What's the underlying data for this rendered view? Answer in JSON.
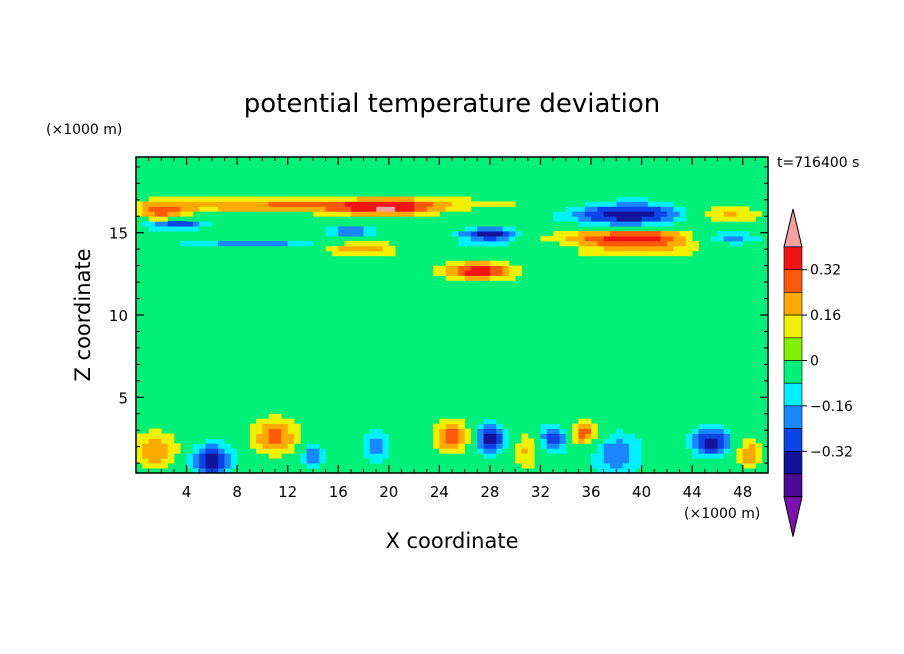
{
  "chart_data": {
    "type": "heatmap",
    "title": "potential temperature deviation",
    "time_label": "t=716400 s",
    "xlabel": "X coordinate",
    "ylabel": "Z coordinate",
    "x_unit": "(×1000 m)",
    "y_unit": "(×1000 m)",
    "xlim": [
      0,
      50
    ],
    "ylim": [
      0.4,
      19.6
    ],
    "x_ticks": [
      4,
      8,
      12,
      16,
      20,
      24,
      28,
      32,
      36,
      40,
      44,
      48
    ],
    "y_ticks": [
      5,
      10,
      15
    ],
    "colorbar": {
      "levels": [
        -0.48,
        -0.4,
        -0.32,
        -0.24,
        -0.16,
        -0.08,
        0,
        0.08,
        0.16,
        0.24,
        0.32,
        0.4
      ],
      "tick_labels": [
        {
          "value": 0.32,
          "label": "0.32"
        },
        {
          "value": 0.16,
          "label": "0.16"
        },
        {
          "value": 0,
          "label": "0"
        },
        {
          "value": -0.16,
          "label": "−0.16"
        },
        {
          "value": -0.32,
          "label": "−0.32"
        }
      ],
      "colors": [
        "#7b12b0",
        "#4a0a96",
        "#12129a",
        "#0a44e6",
        "#1a86ff",
        "#00f0ff",
        "#00f078",
        "#80f000",
        "#f0f000",
        "#ffaa00",
        "#ff5a0a",
        "#f01414",
        "#f5a0a0"
      ],
      "extend": "both"
    },
    "features": [
      {
        "x": 22,
        "z": 16.8,
        "rx": 25,
        "rz": 0.45,
        "v": 0.1
      },
      {
        "x": 11,
        "z": 16.6,
        "rx": 9,
        "rz": 0.4,
        "v": 0.18
      },
      {
        "x": 20,
        "z": 16.5,
        "rx": 4,
        "rz": 0.5,
        "v": 0.3
      },
      {
        "x": 2,
        "z": 16.2,
        "rx": 2,
        "rz": 0.6,
        "v": 0.24
      },
      {
        "x": 46.5,
        "z": 16.1,
        "rx": 3,
        "rz": 0.5,
        "v": 0.2
      },
      {
        "x": 30,
        "z": 14.2,
        "rx": 20,
        "rz": 0.2,
        "v": -0.12
      },
      {
        "x": 9,
        "z": 14.3,
        "rx": 6,
        "rz": 0.15,
        "v": -0.2
      },
      {
        "x": 3,
        "z": 15.5,
        "rx": 2.5,
        "rz": 0.3,
        "v": -0.35
      },
      {
        "x": 17,
        "z": 15.1,
        "rx": 2,
        "rz": 0.3,
        "v": -0.3
      },
      {
        "x": 28,
        "z": 14.9,
        "rx": 2.5,
        "rz": 0.4,
        "v": -0.4
      },
      {
        "x": 39,
        "z": 16.1,
        "rx": 5,
        "rz": 0.9,
        "v": -0.4
      },
      {
        "x": 39.5,
        "z": 14.6,
        "rx": 6,
        "rz": 0.8,
        "v": 0.42
      },
      {
        "x": 46.5,
        "z": 14.7,
        "rx": 3,
        "rz": 0.4,
        "v": -0.28
      },
      {
        "x": 18,
        "z": 14.1,
        "rx": 3,
        "rz": 0.4,
        "v": 0.28
      },
      {
        "x": 27,
        "z": 12.7,
        "rx": 2.8,
        "rz": 0.5,
        "v": 0.36
      },
      {
        "x": 14,
        "z": 9.5,
        "rx": 10,
        "rz": 4.5,
        "v": 0.03
      },
      {
        "x": 30,
        "z": 10.5,
        "rx": 5,
        "rz": 3,
        "v": 0.03
      },
      {
        "x": 36,
        "z": 7.5,
        "rx": 8,
        "rz": 2.5,
        "v": 0.02
      },
      {
        "x": 1.5,
        "z": 1.8,
        "rx": 2,
        "rz": 1.2,
        "v": 0.22
      },
      {
        "x": 6,
        "z": 1.2,
        "rx": 1.6,
        "rz": 1,
        "v": -0.4
      },
      {
        "x": 11,
        "z": 2.6,
        "rx": 1.8,
        "rz": 1.1,
        "v": 0.28
      },
      {
        "x": 14,
        "z": 1.5,
        "rx": 0.9,
        "rz": 0.9,
        "v": -0.22
      },
      {
        "x": 19,
        "z": 2,
        "rx": 1.3,
        "rz": 1.1,
        "v": -0.2
      },
      {
        "x": 25,
        "z": 2.6,
        "rx": 1.5,
        "rz": 1,
        "v": 0.3
      },
      {
        "x": 28,
        "z": 2.5,
        "rx": 1.3,
        "rz": 0.9,
        "v": -0.38
      },
      {
        "x": 31,
        "z": 1.8,
        "rx": 1.1,
        "rz": 1.2,
        "v": 0.18
      },
      {
        "x": 33,
        "z": 2.5,
        "rx": 1.2,
        "rz": 0.9,
        "v": -0.3
      },
      {
        "x": 35.5,
        "z": 2.8,
        "rx": 1.2,
        "rz": 0.8,
        "v": 0.3
      },
      {
        "x": 38,
        "z": 1.6,
        "rx": 2.2,
        "rz": 1.4,
        "v": -0.22
      },
      {
        "x": 45.5,
        "z": 2.3,
        "rx": 1.6,
        "rz": 0.9,
        "v": -0.36
      },
      {
        "x": 48.5,
        "z": 1.6,
        "rx": 1.1,
        "rz": 1,
        "v": 0.22
      }
    ]
  }
}
